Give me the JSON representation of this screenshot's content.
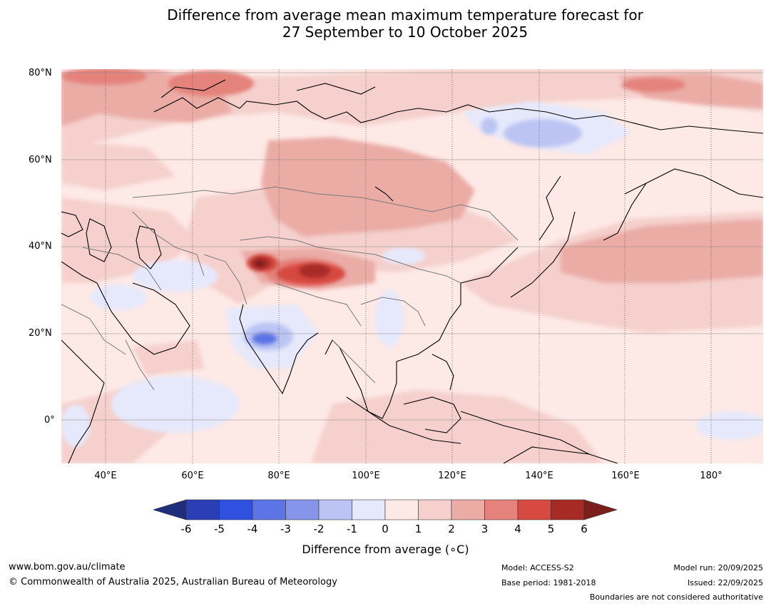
{
  "title_line1": "Difference from average mean maximum temperature forecast for",
  "title_line2": "27 September to 10 October 2025",
  "lat_labels": [
    "80°N",
    "60°N",
    "40°N",
    "20°N",
    "0°"
  ],
  "lon_labels": [
    "40°E",
    "60°E",
    "80°E",
    "100°E",
    "120°E",
    "140°E",
    "160°E",
    "180°"
  ],
  "colorbar": {
    "ticks": [
      "-6",
      "-5",
      "-4",
      "-3",
      "-2",
      "-1",
      "0",
      "1",
      "2",
      "3",
      "4",
      "5",
      "6"
    ],
    "colors": [
      "#1f2e7a",
      "#2a3fb5",
      "#3050e0",
      "#5c74e6",
      "#8694ea",
      "#bcc4f3",
      "#e6e9fb",
      "#fde9e6",
      "#f5d0cc",
      "#ebaca6",
      "#e4827b",
      "#d74a41",
      "#a82a25",
      "#7a1f1c"
    ],
    "label": "Difference from average (∘C)"
  },
  "footer": {
    "url": "www.bom.gov.au/climate",
    "copyright": "© Commonwealth of Australia 2025, Australian Bureau of Meteorology",
    "model": "Model: ACCESS-S2",
    "base_period": "Base period: 1981-2018",
    "model_run": "Model run: 20/09/2025",
    "issued": "Issued: 22/09/2025",
    "disclaimer": "Boundaries are not considered authoritative"
  }
}
